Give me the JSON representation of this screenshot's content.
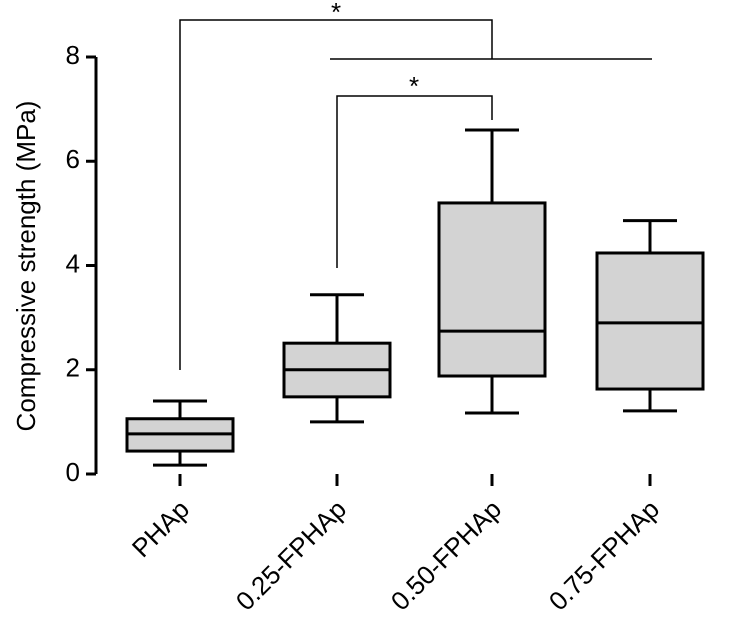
{
  "chart_data": {
    "type": "box",
    "ylabel": "Compressive strength (MPa)",
    "categories": [
      "PHAp",
      "0.25-FPHAp",
      "0.50-FPHAp",
      "0.75-FPHAp"
    ],
    "boxes": [
      {
        "min": 0.17,
        "q1": 0.44,
        "median": 0.77,
        "q3": 1.06,
        "max": 1.4
      },
      {
        "min": 1.0,
        "q1": 1.48,
        "median": 2.0,
        "q3": 2.51,
        "max": 3.44
      },
      {
        "min": 1.17,
        "q1": 1.88,
        "median": 2.74,
        "q3": 5.2,
        "max": 6.6
      },
      {
        "min": 1.21,
        "q1": 1.63,
        "median": 2.9,
        "q3": 4.24,
        "max": 4.86
      }
    ],
    "color": "#d3d3d3",
    "ylim": [
      0,
      8
    ],
    "yticks": [
      0,
      2,
      4,
      6,
      8
    ],
    "annotations": [
      "*",
      "*"
    ]
  }
}
